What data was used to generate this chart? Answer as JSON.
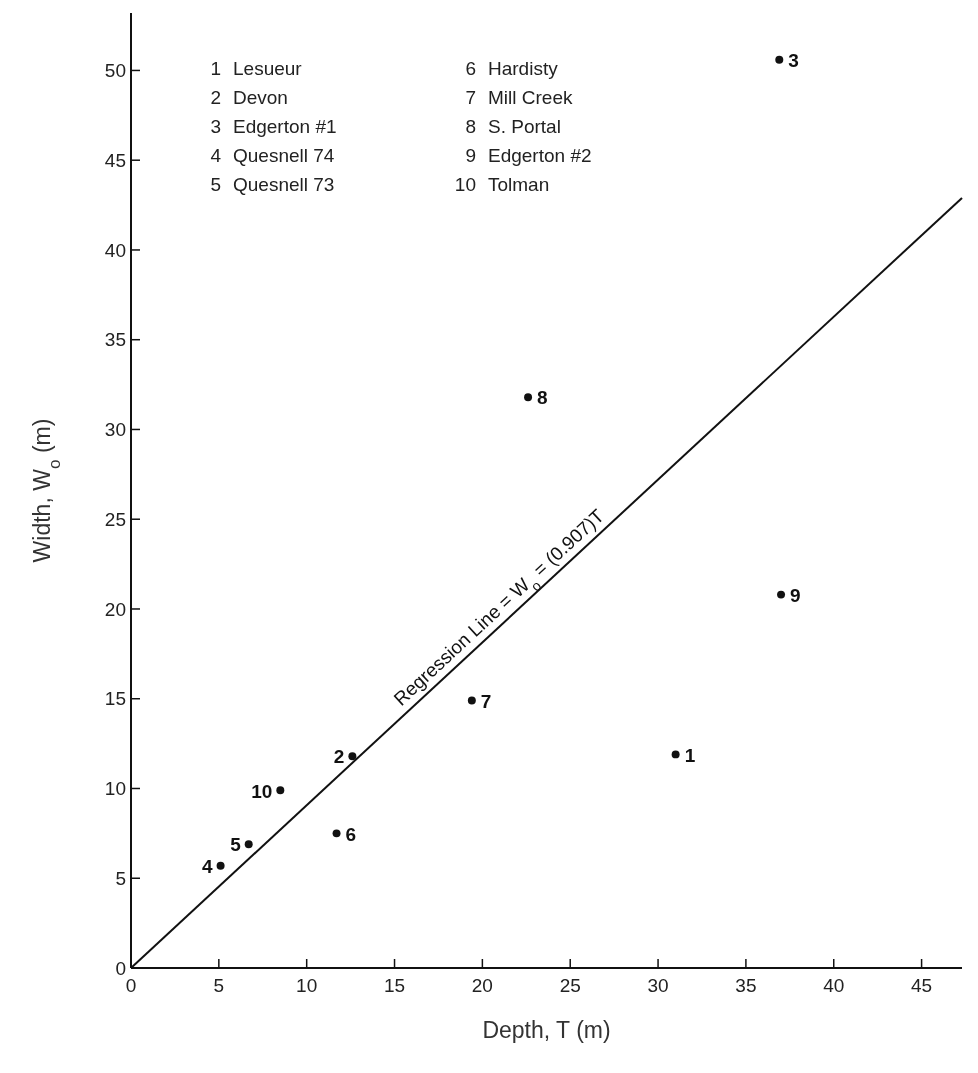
{
  "chart_data": {
    "type": "scatter",
    "xlabel": "Depth, T (m)",
    "ylabel": "Width, W$_{o}$ (m)",
    "xlim": [
      0,
      47.3
    ],
    "ylim": [
      0,
      53.2
    ],
    "xticks": [
      0,
      5,
      10,
      15,
      20,
      25,
      30,
      35,
      40,
      45
    ],
    "yticks": [
      0,
      5,
      10,
      15,
      20,
      25,
      30,
      35,
      40,
      45,
      50
    ],
    "grid": false,
    "marker": "circle",
    "series": [
      {
        "color": "#111111",
        "x": [
          31.0,
          12.6,
          36.9,
          5.1,
          6.7,
          11.7,
          19.4,
          22.6,
          37.0,
          8.5
        ],
        "values": [
          11.9,
          11.8,
          50.6,
          5.7,
          6.9,
          7.5,
          14.9,
          31.8,
          20.8,
          9.9
        ]
      },
      {
        "type": "line",
        "color": "#111111",
        "line_style": "solid",
        "marker": "none",
        "x": [
          0,
          47.3
        ],
        "values": [
          0,
          42.9
        ]
      }
    ],
    "annotations": [
      {
        "text": "1",
        "x": 31.0,
        "y": 11.9
      },
      {
        "text": "2",
        "x": 12.6,
        "y": 11.8
      },
      {
        "text": "3",
        "x": 36.9,
        "y": 50.6
      },
      {
        "text": "4",
        "x": 5.1,
        "y": 5.7
      },
      {
        "text": "5",
        "x": 6.7,
        "y": 6.9
      },
      {
        "text": "6",
        "x": 11.7,
        "y": 7.5
      },
      {
        "text": "7",
        "x": 19.4,
        "y": 14.9
      },
      {
        "text": "8",
        "x": 22.6,
        "y": 31.8
      },
      {
        "text": "9",
        "x": 37.0,
        "y": 20.8
      },
      {
        "text": "10",
        "x": 8.5,
        "y": 9.9
      },
      {
        "text": "Regression Line = W$_{o}$ = (0.907)T",
        "x": 21.5,
        "y": 19.5
      },
      "1 Lesueur",
      "2 Devon",
      "3 Edgerton #1",
      "4 Quesnell 74",
      "5 Quesnell 73",
      "6 Hardisty",
      "7 Mill Creek",
      "8 S. Portal",
      "9 Edgerton #2",
      "10 Tolman"
    ]
  }
}
